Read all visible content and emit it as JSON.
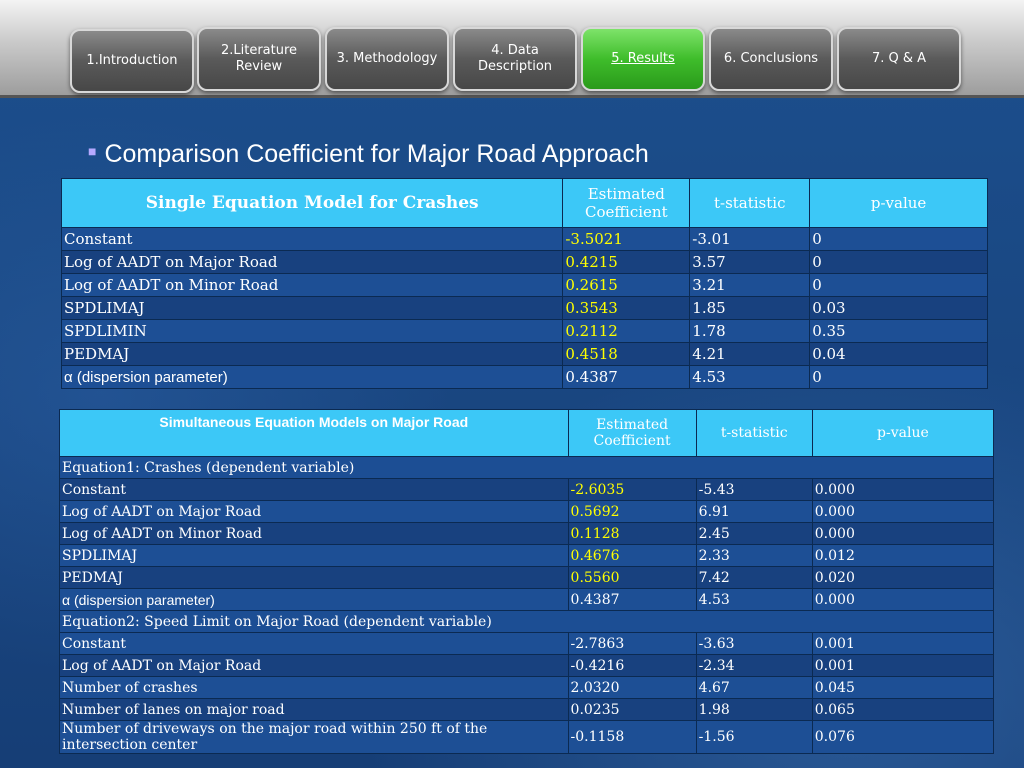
{
  "nav": {
    "items": [
      {
        "label": "1.Introduction",
        "active": false
      },
      {
        "label": "2.Literature Review",
        "active": false
      },
      {
        "label": "3. Methodology",
        "active": false
      },
      {
        "label": "4. Data Description",
        "active": false
      },
      {
        "label": "5. Results",
        "active": true
      },
      {
        "label": "6. Conclusions",
        "active": false
      },
      {
        "label": "7. Q & A",
        "active": false
      }
    ]
  },
  "heading": "Comparison Coefficient for Major Road Approach",
  "table1": {
    "headers": [
      "Single Equation Model for Crashes",
      "Estimated Coefficient",
      "t-statistic",
      "p-value"
    ],
    "rows": [
      [
        "Constant",
        "-3.5021",
        "-3.01",
        "0"
      ],
      [
        "Log of AADT on Major Road",
        "0.4215",
        "3.57",
        "0"
      ],
      [
        "Log of AADT on Minor Road",
        "0.2615",
        "3.21",
        "0"
      ],
      [
        "SPDLIMAJ",
        "0.3543",
        "1.85",
        "0.03"
      ],
      [
        "SPDLIMIN",
        "0.2112",
        "1.78",
        "0.35"
      ],
      [
        "PEDMAJ",
        "0.4518",
        "4.21",
        "0.04"
      ],
      [
        "α (dispersion parameter)",
        "0.4387",
        "4.53",
        "0"
      ]
    ]
  },
  "table2": {
    "headers": [
      "Simultaneous Equation Models on Major Road",
      "Estimated Coefficient",
      "t-statistic",
      "p-value"
    ],
    "eq1_label": "Equation1: Crashes (dependent variable)",
    "eq1_rows": [
      [
        "Constant",
        "-2.6035",
        "-5.43",
        "0.000"
      ],
      [
        "Log of AADT on Major Road",
        "0.5692",
        "6.91",
        "0.000"
      ],
      [
        "Log of AADT on Minor Road",
        "0.1128",
        "2.45",
        "0.000"
      ],
      [
        "SPDLIMAJ",
        "0.4676",
        "2.33",
        "0.012"
      ],
      [
        "PEDMAJ",
        "0.5560",
        "7.42",
        "0.020"
      ],
      [
        "α (dispersion parameter)",
        "0.4387",
        "4.53",
        "0.000"
      ]
    ],
    "eq2_label": "Equation2: Speed Limit on Major Road (dependent variable)",
    "eq2_rows": [
      [
        "Constant",
        "-2.7863",
        "-3.63",
        "0.001"
      ],
      [
        "Log of AADT on Major Road",
        "-0.4216",
        "-2.34",
        "0.001"
      ],
      [
        "Number of crashes",
        "2.0320",
        "4.67",
        "0.045"
      ],
      [
        "Number of lanes on major road",
        "0.0235",
        "1.98",
        "0.065"
      ],
      [
        "Number of driveways on the major road within 250 ft of the intersection center",
        "-0.1158",
        "-1.56",
        "0.076"
      ]
    ]
  }
}
